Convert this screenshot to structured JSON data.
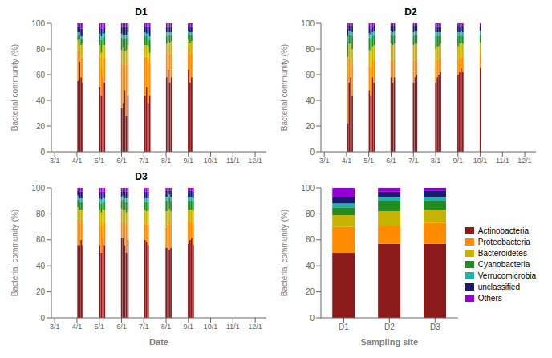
{
  "chart_data": [
    {
      "type": "bar",
      "title": "D1",
      "stacked": true,
      "ylabel": "Bacterial community (%)",
      "xlim": [
        2.85,
        12.5
      ],
      "xticks": [
        {
          "value": 3,
          "label": "3/1"
        },
        {
          "value": 4,
          "label": "4/1"
        },
        {
          "value": 5,
          "label": "5/1"
        },
        {
          "value": 6,
          "label": "6/1"
        },
        {
          "value": 7,
          "label": "7/1"
        },
        {
          "value": 8,
          "label": "8/1"
        },
        {
          "value": 9,
          "label": "9/1"
        },
        {
          "value": 10,
          "label": "10/1"
        },
        {
          "value": 11,
          "label": "11/1"
        },
        {
          "value": 12,
          "label": "12/1"
        }
      ],
      "ylim": [
        0,
        100
      ],
      "yticks": [
        0,
        20,
        40,
        60,
        80,
        100
      ],
      "x": [
        4.05,
        4.12,
        4.19,
        4.26,
        5.03,
        5.1,
        5.17,
        5.24,
        6.01,
        6.08,
        6.15,
        6.22,
        6.29,
        7.06,
        7.13,
        7.2,
        7.27,
        8.03,
        8.1,
        8.17,
        8.24,
        9.01,
        9.08,
        9.15
      ],
      "series": [
        {
          "name": "Actinobacteria",
          "color": "#8B1A1A",
          "values": [
            55,
            70,
            58,
            54,
            50,
            44,
            58,
            54,
            34,
            38,
            48,
            28,
            44,
            44,
            50,
            38,
            44,
            58,
            64,
            54,
            58,
            64,
            54,
            58
          ]
        },
        {
          "name": "Proteobacteria",
          "color": "#FF8C00",
          "values": [
            24,
            10,
            15,
            20,
            24,
            21,
            15,
            20,
            35,
            30,
            20,
            40,
            30,
            30,
            24,
            35,
            24,
            19,
            16,
            22,
            19,
            17,
            22,
            19
          ]
        },
        {
          "name": "Bacteroidetes",
          "color": "#C8B400",
          "values": [
            8,
            8,
            10,
            10,
            9,
            12,
            10,
            9,
            10,
            13,
            10,
            11,
            9,
            9,
            9,
            9,
            9,
            7,
            6,
            9,
            9,
            6,
            9,
            9
          ]
        },
        {
          "name": "Cyanobacteria",
          "color": "#228B22",
          "values": [
            3,
            3,
            5,
            4,
            7,
            10,
            6,
            7,
            10,
            7,
            10,
            10,
            7,
            7,
            7,
            7,
            10,
            6,
            5,
            6,
            5,
            5,
            6,
            5
          ]
        },
        {
          "name": "Verrucomicrobia",
          "color": "#20B2AA",
          "values": [
            3,
            2,
            2,
            2,
            2,
            3,
            3,
            2,
            3,
            3,
            3,
            2,
            3,
            3,
            2,
            3,
            3,
            3,
            2,
            2,
            2,
            2,
            2,
            2
          ]
        },
        {
          "name": "unclassified",
          "color": "#191970",
          "values": [
            4,
            4,
            6,
            6,
            5,
            6,
            4,
            5,
            5,
            6,
            6,
            6,
            5,
            5,
            5,
            5,
            7,
            4,
            4,
            4,
            4,
            4,
            4,
            4
          ]
        },
        {
          "name": "Others",
          "color": "#9400D3",
          "values": [
            3,
            3,
            4,
            4,
            3,
            4,
            4,
            3,
            3,
            3,
            3,
            3,
            2,
            2,
            3,
            3,
            3,
            3,
            3,
            3,
            3,
            2,
            3,
            3
          ]
        }
      ]
    },
    {
      "type": "bar",
      "title": "D2",
      "stacked": true,
      "ylabel": "Bacterial community (%)",
      "xlim": [
        2.85,
        12.5
      ],
      "xticks": [
        {
          "value": 3,
          "label": "3/1"
        },
        {
          "value": 4,
          "label": "4/1"
        },
        {
          "value": 5,
          "label": "5/1"
        },
        {
          "value": 6,
          "label": "6/1"
        },
        {
          "value": 7,
          "label": "7/1"
        },
        {
          "value": 8,
          "label": "8/1"
        },
        {
          "value": 9,
          "label": "9/1"
        },
        {
          "value": 10,
          "label": "10/1"
        },
        {
          "value": 11,
          "label": "11/1"
        },
        {
          "value": 12,
          "label": "12/1"
        }
      ],
      "ylim": [
        0,
        100
      ],
      "yticks": [
        0,
        20,
        40,
        60,
        80,
        100
      ],
      "x": [
        4.05,
        4.12,
        4.19,
        4.26,
        5.03,
        5.1,
        5.17,
        5.24,
        6.01,
        6.08,
        6.15,
        7.01,
        7.08,
        7.15,
        8.01,
        8.08,
        8.15,
        8.22,
        9.01,
        9.08,
        9.15,
        9.22,
        10.01
      ],
      "series": [
        {
          "name": "Actinobacteria",
          "color": "#8B1A1A",
          "values": [
            22,
            54,
            58,
            44,
            48,
            44,
            58,
            54,
            58,
            54,
            58,
            54,
            58,
            60,
            54,
            58,
            60,
            62,
            60,
            62,
            65,
            62,
            65
          ]
        },
        {
          "name": "Proteobacteria",
          "color": "#FF8C00",
          "values": [
            38,
            18,
            14,
            24,
            19,
            22,
            14,
            17,
            14,
            17,
            14,
            17,
            14,
            12,
            14,
            14,
            12,
            12,
            12,
            12,
            10,
            12,
            10
          ]
        },
        {
          "name": "Bacteroidetes",
          "color": "#C8B400",
          "values": [
            14,
            12,
            12,
            12,
            12,
            12,
            10,
            12,
            12,
            12,
            12,
            12,
            12,
            12,
            12,
            10,
            10,
            10,
            10,
            10,
            10,
            10,
            10
          ]
        },
        {
          "name": "Cyanobacteria",
          "color": "#228B22",
          "values": [
            12,
            7,
            7,
            10,
            10,
            10,
            8,
            8,
            7,
            7,
            7,
            7,
            7,
            7,
            10,
            8,
            8,
            6,
            8,
            6,
            6,
            6,
            6
          ]
        },
        {
          "name": "Verrucomicrobia",
          "color": "#20B2AA",
          "values": [
            4,
            3,
            3,
            3,
            3,
            3,
            3,
            3,
            3,
            3,
            3,
            3,
            3,
            3,
            3,
            3,
            3,
            3,
            3,
            3,
            3,
            3,
            3
          ]
        },
        {
          "name": "unclassified",
          "color": "#191970",
          "values": [
            6,
            4,
            4,
            5,
            6,
            5,
            4,
            4,
            4,
            5,
            4,
            5,
            4,
            4,
            5,
            4,
            4,
            4,
            5,
            4,
            4,
            5,
            4
          ]
        },
        {
          "name": "Others",
          "color": "#9400D3",
          "values": [
            4,
            2,
            2,
            2,
            2,
            4,
            3,
            2,
            2,
            2,
            2,
            2,
            2,
            2,
            2,
            3,
            3,
            3,
            2,
            3,
            2,
            2,
            2
          ]
        }
      ]
    },
    {
      "type": "bar",
      "title": "D3",
      "stacked": true,
      "ylabel": "Bacterial community (%)",
      "xlabel": "Date",
      "xlim": [
        2.85,
        12.5
      ],
      "xticks": [
        {
          "value": 3,
          "label": "3/1"
        },
        {
          "value": 4,
          "label": "4/1"
        },
        {
          "value": 5,
          "label": "5/1"
        },
        {
          "value": 6,
          "label": "6/1"
        },
        {
          "value": 7,
          "label": "7/1"
        },
        {
          "value": 8,
          "label": "8/1"
        },
        {
          "value": 9,
          "label": "9/1"
        },
        {
          "value": 10,
          "label": "10/1"
        },
        {
          "value": 11,
          "label": "11/1"
        },
        {
          "value": 12,
          "label": "12/1"
        }
      ],
      "ylim": [
        0,
        100
      ],
      "yticks": [
        0,
        20,
        40,
        60,
        80,
        100
      ],
      "x": [
        4.05,
        4.12,
        4.19,
        4.26,
        5.03,
        5.1,
        5.17,
        5.24,
        6.01,
        6.08,
        6.15,
        6.22,
        6.29,
        7.06,
        7.13,
        7.2,
        8.01,
        8.08,
        8.15,
        8.22,
        9.01,
        9.08,
        9.15,
        9.22
      ],
      "series": [
        {
          "name": "Actinobacteria",
          "color": "#8B1A1A",
          "values": [
            56,
            56,
            60,
            56,
            56,
            50,
            62,
            56,
            62,
            62,
            56,
            50,
            60,
            60,
            58,
            56,
            54,
            54,
            52,
            54,
            57,
            60,
            62,
            56
          ]
        },
        {
          "name": "Proteobacteria",
          "color": "#FF8C00",
          "values": [
            20,
            17,
            14,
            17,
            17,
            21,
            12,
            17,
            12,
            12,
            17,
            21,
            14,
            13,
            14,
            17,
            16,
            18,
            22,
            18,
            17,
            14,
            12,
            17
          ]
        },
        {
          "name": "Bacteroidetes",
          "color": "#C8B400",
          "values": [
            9,
            10,
            9,
            10,
            10,
            10,
            9,
            10,
            10,
            9,
            10,
            10,
            9,
            10,
            10,
            10,
            12,
            10,
            10,
            10,
            9,
            9,
            9,
            10
          ]
        },
        {
          "name": "Cyanobacteria",
          "color": "#228B22",
          "values": [
            6,
            6,
            6,
            6,
            6,
            7,
            6,
            6,
            6,
            8,
            6,
            8,
            6,
            6,
            7,
            6,
            8,
            8,
            8,
            8,
            7,
            7,
            7,
            6
          ]
        },
        {
          "name": "Verrucomicrobia",
          "color": "#20B2AA",
          "values": [
            3,
            3,
            3,
            3,
            3,
            3,
            3,
            3,
            3,
            3,
            3,
            3,
            3,
            3,
            3,
            3,
            3,
            3,
            3,
            3,
            3,
            3,
            3,
            3
          ]
        },
        {
          "name": "unclassified",
          "color": "#191970",
          "values": [
            4,
            5,
            5,
            5,
            5,
            6,
            5,
            5,
            4,
            4,
            5,
            5,
            5,
            5,
            5,
            5,
            5,
            5,
            3,
            5,
            5,
            5,
            5,
            5
          ]
        },
        {
          "name": "Others",
          "color": "#9400D3",
          "values": [
            2,
            3,
            3,
            3,
            3,
            3,
            3,
            3,
            3,
            2,
            3,
            3,
            3,
            3,
            3,
            3,
            2,
            2,
            2,
            2,
            2,
            2,
            2,
            3
          ]
        }
      ]
    },
    {
      "type": "bar",
      "stacked": true,
      "ylabel": "Bacterial community (%)",
      "xlabel": "Sampling site",
      "legend": "right",
      "ylim": [
        0,
        100
      ],
      "yticks": [
        0,
        20,
        40,
        60,
        80,
        100
      ],
      "categories": [
        "D1",
        "D2",
        "D3"
      ],
      "series": [
        {
          "name": "Actinobacteria",
          "color": "#8B1A1A",
          "values": [
            50,
            57,
            57
          ]
        },
        {
          "name": "Proteobacteria",
          "color": "#FF8C00",
          "values": [
            20,
            14,
            16
          ]
        },
        {
          "name": "Bacteroidetes",
          "color": "#C8B400",
          "values": [
            9,
            11,
            10
          ]
        },
        {
          "name": "Cyanobacteria",
          "color": "#228B22",
          "values": [
            6,
            8,
            7
          ]
        },
        {
          "name": "Verrucomicrobia",
          "color": "#20B2AA",
          "values": [
            3,
            3,
            3
          ]
        },
        {
          "name": "unclassified",
          "color": "#191970",
          "values": [
            5,
            4,
            5
          ]
        },
        {
          "name": "Others",
          "color": "#9400D3",
          "values": [
            7,
            3,
            2
          ]
        }
      ]
    }
  ]
}
